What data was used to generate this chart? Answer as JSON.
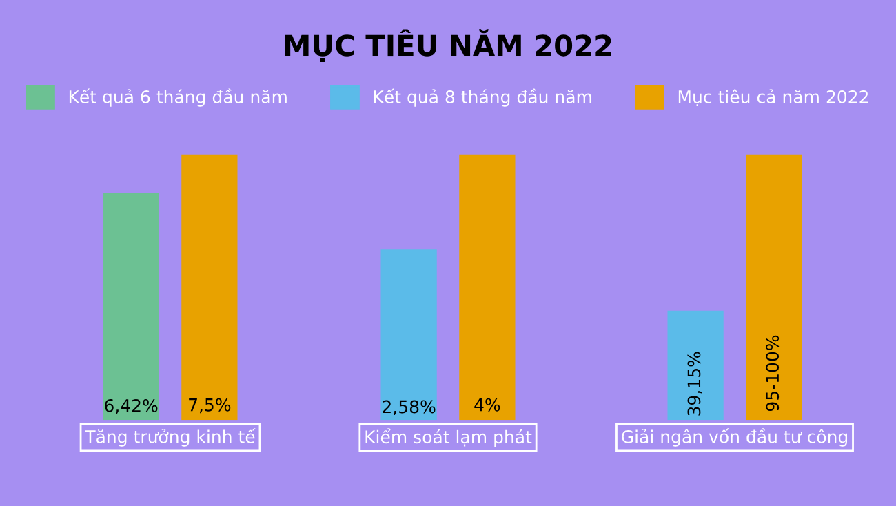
{
  "chart_data": [
    {
      "type": "bar",
      "legend": "top",
      "categories": [
        "Tăng trưởng kinh tế"
      ],
      "series": [
        {
          "name": "Kết quả 6 tháng đầu năm",
          "color": "#6cc193",
          "values": [
            6.42
          ],
          "value_labels": [
            "6,42%"
          ]
        },
        {
          "name": "Mục tiêu cả năm 2022",
          "color": "#e8a200",
          "values": [
            7.5
          ],
          "value_labels": [
            "7,5%"
          ]
        }
      ]
    },
    {
      "type": "bar",
      "title": "MỤC TIÊU NĂM 2022",
      "categories": [
        "Kiểm soát lạm phát"
      ],
      "series": [
        {
          "name": "Kết quả 8 tháng đầu năm",
          "color": "#5bbbe9",
          "values": [
            2.58
          ],
          "value_labels": [
            "2,58%"
          ]
        },
        {
          "name": "Mục tiêu cả năm 2022",
          "color": "#e8a200",
          "values": [
            4
          ],
          "value_labels": [
            "4%"
          ]
        }
      ]
    },
    {
      "type": "bar",
      "categories": [
        "Giải ngân vốn đầu tư công"
      ],
      "series": [
        {
          "name": "Kết quả 8 tháng đầu năm",
          "color": "#5bbbe9",
          "values": [
            39.15
          ],
          "value_labels": [
            "39,15%"
          ]
        },
        {
          "name": "Mục tiêu cả năm 2022",
          "color": "#e8a200",
          "values": [
            95
          ],
          "value_labels": [
            "95-100%"
          ]
        }
      ]
    }
  ]
}
